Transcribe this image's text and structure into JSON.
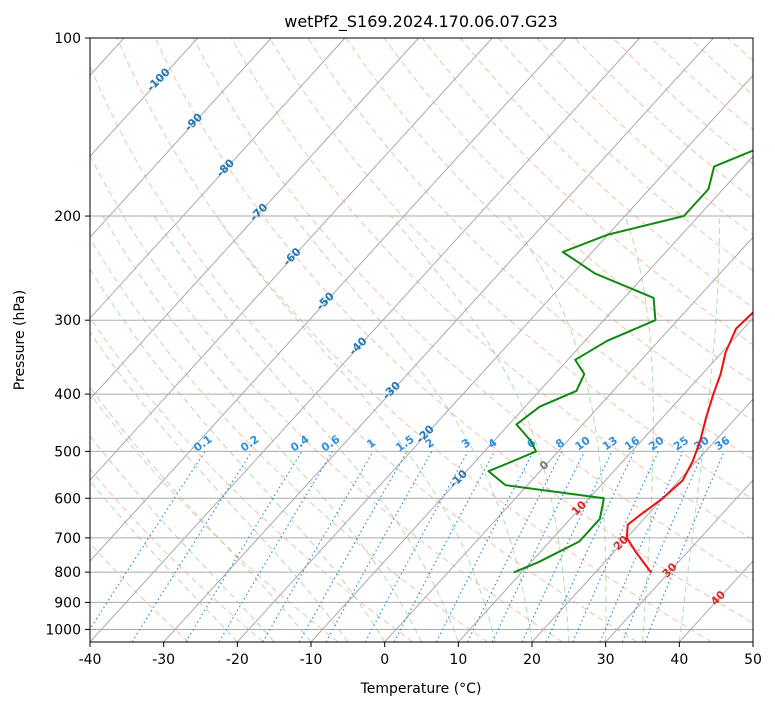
{
  "chart_data": {
    "type": "line",
    "subtype": "skew-t log-p diagram",
    "title": "wetPf2_S169.2024.170.06.07.G23",
    "xlabel": "Temperature (°C)",
    "ylabel": "Pressure (hPa)",
    "xlim": [
      -40,
      50
    ],
    "ylim": [
      1050,
      100
    ],
    "y_scale": "log",
    "grid": true,
    "x_ticks": [
      -40,
      -30,
      -20,
      -10,
      0,
      10,
      20,
      30,
      40,
      50
    ],
    "y_ticks": [
      100,
      200,
      300,
      400,
      500,
      600,
      700,
      800,
      900,
      1000
    ],
    "colors": {
      "temperature": "#ee1111",
      "dewpoint": "#118811",
      "isotherm": "#aaaaaa",
      "dry_adiabat": "#f4a58a",
      "moist_adiabat": "#9fd39f",
      "mixing_ratio": "#2c8fe0",
      "isotherm_label": "#1f77b4",
      "warm_label": "#d62728",
      "zero_label": "#777777"
    },
    "series": [
      {
        "role": "temperature",
        "points": [
          [
            27.5,
            800
          ],
          [
            23,
            740
          ],
          [
            20,
            700
          ],
          [
            18.5,
            665
          ],
          [
            19,
            640
          ],
          [
            20,
            600
          ],
          [
            20.5,
            560
          ],
          [
            19.5,
            520
          ],
          [
            18,
            480
          ],
          [
            16,
            440
          ],
          [
            14,
            400
          ],
          [
            12.5,
            370
          ],
          [
            10.5,
            340
          ],
          [
            9,
            310
          ],
          [
            9.5,
            280
          ],
          [
            11.5,
            255
          ],
          [
            14,
            230
          ],
          [
            15,
            210
          ],
          [
            15,
            190
          ],
          [
            15.5,
            170
          ],
          [
            16,
            150
          ],
          [
            17.5,
            135
          ],
          [
            20,
            120
          ],
          [
            22,
            110
          ],
          [
            24,
            100
          ]
        ]
      },
      {
        "role": "dewpoint",
        "points": [
          [
            9,
            800
          ],
          [
            11,
            770
          ],
          [
            14,
            710
          ],
          [
            14,
            650
          ],
          [
            12,
            600
          ],
          [
            -3,
            570
          ],
          [
            -7,
            540
          ],
          [
            -5,
            520
          ],
          [
            -3,
            500
          ],
          [
            -5,
            480
          ],
          [
            -9,
            450
          ],
          [
            -8,
            420
          ],
          [
            -5,
            395
          ],
          [
            -6,
            370
          ],
          [
            -9,
            350
          ],
          [
            -7,
            325
          ],
          [
            -3,
            300
          ],
          [
            -6,
            275
          ],
          [
            -17,
            250
          ],
          [
            -24,
            230
          ],
          [
            -20,
            215
          ],
          [
            -12,
            200
          ],
          [
            -12,
            180
          ],
          [
            -14,
            165
          ],
          [
            -9,
            150
          ],
          [
            -6,
            140
          ],
          [
            -3,
            130
          ],
          [
            -1,
            120
          ],
          [
            -1,
            115
          ],
          [
            -3,
            110
          ],
          [
            0,
            105
          ],
          [
            2,
            100
          ]
        ]
      }
    ],
    "isotherm_labels": [
      "-100",
      "-90",
      "-80",
      "-70",
      "-60",
      "-50",
      "-40",
      "-30",
      "-20",
      "-10",
      "0",
      "10",
      "20",
      "30",
      "40"
    ],
    "mixing_ratio_labels": [
      "0.1",
      "0.2",
      "0.4",
      "0.6",
      "1",
      "1.5",
      "2",
      "3",
      "4",
      "6",
      "8",
      "10",
      "13",
      "16",
      "20",
      "25",
      "30",
      "36"
    ]
  }
}
